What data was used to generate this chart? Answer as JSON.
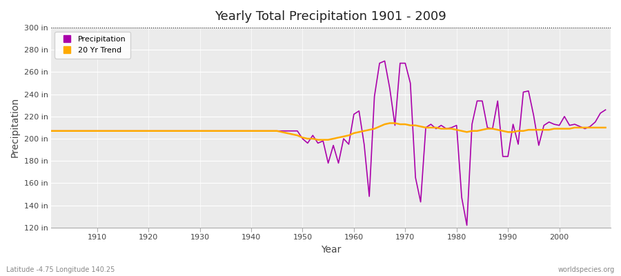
{
  "title": "Yearly Total Precipitation 1901 - 2009",
  "xlabel": "Year",
  "ylabel": "Precipitation",
  "subtitle_left": "Latitude -4.75 Longitude 140.25",
  "subtitle_right": "worldspecies.org",
  "legend_labels": [
    "Precipitation",
    "20 Yr Trend"
  ],
  "precip_color": "#aa00aa",
  "trend_color": "#ffaa00",
  "fig_bg_color": "#ffffff",
  "plot_bg_color": "#ebebeb",
  "grid_color": "#ffffff",
  "ylim": [
    120,
    300
  ],
  "yticks": [
    120,
    140,
    160,
    180,
    200,
    220,
    240,
    260,
    280,
    300
  ],
  "ytick_labels": [
    "120 in",
    "140 in",
    "160 in",
    "180 in",
    "200 in",
    "220 in",
    "240 in",
    "260 in",
    "280 in",
    "300 in"
  ],
  "xlim": [
    1901,
    2010
  ],
  "xticks": [
    1910,
    1920,
    1930,
    1940,
    1950,
    1960,
    1970,
    1980,
    1990,
    2000
  ],
  "years": [
    1901,
    1902,
    1903,
    1904,
    1905,
    1906,
    1907,
    1908,
    1909,
    1910,
    1911,
    1912,
    1913,
    1914,
    1915,
    1916,
    1917,
    1918,
    1919,
    1920,
    1921,
    1922,
    1923,
    1924,
    1925,
    1926,
    1927,
    1928,
    1929,
    1930,
    1931,
    1932,
    1933,
    1934,
    1935,
    1936,
    1937,
    1938,
    1939,
    1940,
    1941,
    1942,
    1943,
    1944,
    1945,
    1946,
    1947,
    1948,
    1949,
    1950,
    1951,
    1952,
    1953,
    1954,
    1955,
    1956,
    1957,
    1958,
    1959,
    1960,
    1961,
    1962,
    1963,
    1964,
    1965,
    1966,
    1967,
    1968,
    1969,
    1970,
    1971,
    1972,
    1973,
    1974,
    1975,
    1976,
    1977,
    1978,
    1979,
    1980,
    1981,
    1982,
    1983,
    1984,
    1985,
    1986,
    1987,
    1988,
    1989,
    1990,
    1991,
    1992,
    1993,
    1994,
    1995,
    1996,
    1997,
    1998,
    1999,
    2000,
    2001,
    2002,
    2003,
    2004,
    2005,
    2006,
    2007,
    2008,
    2009
  ],
  "precip": [
    207,
    207,
    207,
    207,
    207,
    207,
    207,
    207,
    207,
    207,
    207,
    207,
    207,
    207,
    207,
    207,
    207,
    207,
    207,
    207,
    207,
    207,
    207,
    207,
    207,
    207,
    207,
    207,
    207,
    207,
    207,
    207,
    207,
    207,
    207,
    207,
    207,
    207,
    207,
    207,
    207,
    207,
    207,
    207,
    207,
    207,
    207,
    207,
    207,
    200,
    196,
    203,
    196,
    198,
    178,
    194,
    178,
    200,
    195,
    222,
    225,
    195,
    148,
    238,
    268,
    270,
    245,
    212,
    268,
    268,
    250,
    165,
    143,
    210,
    213,
    209,
    212,
    209,
    210,
    212,
    147,
    122,
    213,
    234,
    234,
    210,
    209,
    234,
    184,
    184,
    213,
    195,
    242,
    243,
    221,
    194,
    212,
    215,
    213,
    212,
    220,
    212,
    213,
    211,
    209,
    211,
    215,
    223,
    226
  ],
  "trend": [
    207,
    207,
    207,
    207,
    207,
    207,
    207,
    207,
    207,
    207,
    207,
    207,
    207,
    207,
    207,
    207,
    207,
    207,
    207,
    207,
    207,
    207,
    207,
    207,
    207,
    207,
    207,
    207,
    207,
    207,
    207,
    207,
    207,
    207,
    207,
    207,
    207,
    207,
    207,
    207,
    207,
    207,
    207,
    207,
    207,
    206,
    205,
    204,
    203,
    201,
    200,
    200,
    199,
    199,
    199,
    200,
    201,
    202,
    203,
    205,
    206,
    207,
    208,
    209,
    211,
    213,
    214,
    214,
    213,
    213,
    212,
    212,
    211,
    210,
    210,
    210,
    209,
    209,
    209,
    208,
    207,
    206,
    207,
    207,
    208,
    209,
    209,
    208,
    207,
    206,
    206,
    207,
    207,
    208,
    208,
    208,
    208,
    208,
    209,
    209,
    209,
    209,
    210,
    210,
    210,
    210,
    210,
    210,
    210
  ]
}
